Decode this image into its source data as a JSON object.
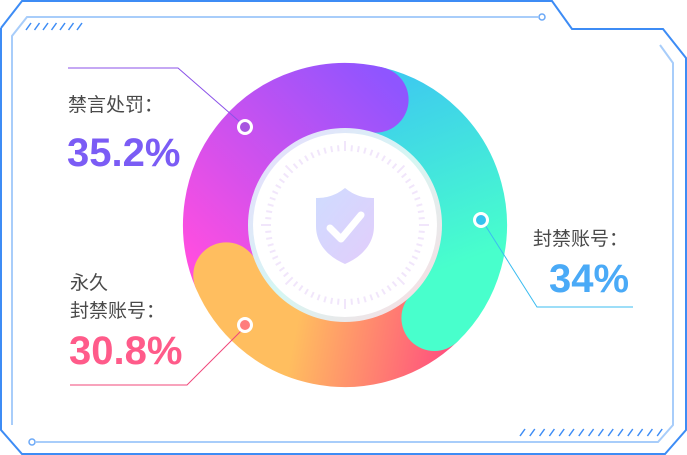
{
  "chart_data": {
    "type": "pie",
    "variant": "donut",
    "center_icon": "shield-check-icon",
    "slices": [
      {
        "label": "禁言处罚：",
        "value": 35.2,
        "value_label": "35.2%",
        "color": "#7b5cf5",
        "gradient": [
          "#ff4ee0",
          "#8f55ff"
        ]
      },
      {
        "label": "封禁账号：",
        "value": 34,
        "value_label": "34%",
        "color": "#4aaaf7",
        "gradient": [
          "#3ecbee",
          "#48ffcc"
        ]
      },
      {
        "label_lines": [
          "永久",
          "封禁账号："
        ],
        "value": 30.8,
        "value_label": "30.8%",
        "color": "#ff5b8a",
        "gradient": [
          "#ffbe5f",
          "#ff4a80"
        ]
      }
    ]
  },
  "frame_color": "#3d8cf5"
}
